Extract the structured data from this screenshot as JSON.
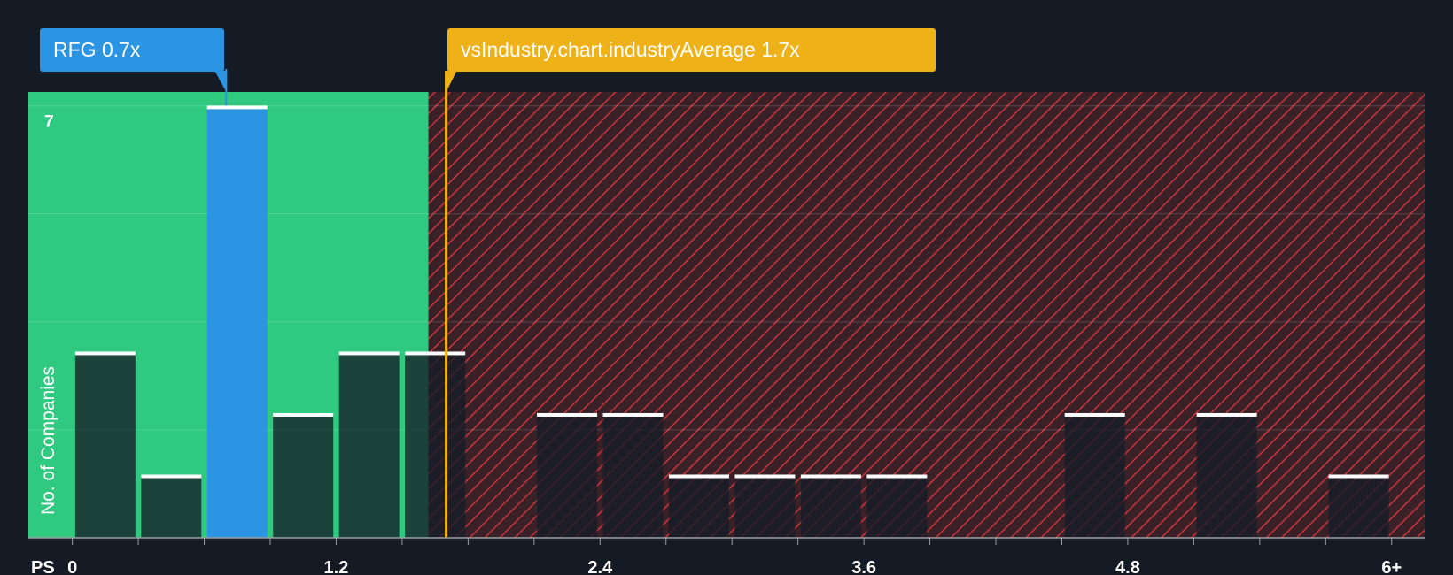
{
  "chart_data": {
    "type": "bar",
    "title": "",
    "xlabel": "PS",
    "ylabel": "No. of Companies",
    "x_ticks": [
      "0",
      "1.2",
      "2.4",
      "3.6",
      "4.8",
      "6+"
    ],
    "x_tick_values": [
      0,
      1.2,
      2.4,
      3.6,
      4.8,
      6.0
    ],
    "xlim": [
      -0.2,
      6.15
    ],
    "ylim": [
      0,
      7.25
    ],
    "y_tick_label": "7",
    "bin_width": 0.3,
    "bins": [
      {
        "x": 0.0,
        "count": 3
      },
      {
        "x": 0.3,
        "count": 1
      },
      {
        "x": 0.6,
        "count": 7,
        "highlight": true
      },
      {
        "x": 0.9,
        "count": 2
      },
      {
        "x": 1.2,
        "count": 3
      },
      {
        "x": 1.5,
        "count": 3
      },
      {
        "x": 2.1,
        "count": 2
      },
      {
        "x": 2.4,
        "count": 2
      },
      {
        "x": 2.7,
        "count": 1
      },
      {
        "x": 3.0,
        "count": 1
      },
      {
        "x": 3.3,
        "count": 1
      },
      {
        "x": 3.6,
        "count": 1
      },
      {
        "x": 4.5,
        "count": 2
      },
      {
        "x": 5.1,
        "count": 2
      },
      {
        "x": 5.7,
        "count": 1
      }
    ],
    "company": {
      "name": "RFG",
      "value": 0.7,
      "label": "RFG 0.7x"
    },
    "industry": {
      "value": 1.7,
      "label": "vsIndustry.chart.industryAverage 1.7x"
    },
    "fair_threshold": 1.62
  },
  "colors": {
    "background": "#151b24",
    "fair_zone": "#2fca80",
    "overvalued_zone": "#3a2128",
    "hatch": "#c8363d",
    "company": "#2b95e3",
    "industry": "#efb118",
    "bar": "rgba(22,28,40,0.78)",
    "bar_cap": "#ffffff",
    "axis_text": "#ffffff"
  }
}
